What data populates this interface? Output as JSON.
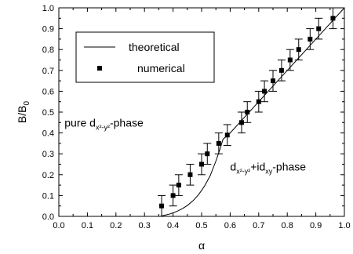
{
  "chart_data": {
    "type": "scatter",
    "xlabel": "α",
    "ylabel_main": "B/B",
    "ylabel_sub": "0",
    "xlim": [
      0.0,
      1.0
    ],
    "ylim": [
      0.0,
      1.0
    ],
    "x_ticks": [
      "0.0",
      "0.1",
      "0.2",
      "0.3",
      "0.4",
      "0.5",
      "0.6",
      "0.7",
      "0.8",
      "0.9",
      "1.0"
    ],
    "y_ticks": [
      "0.0",
      "0.1",
      "0.2",
      "0.3",
      "0.4",
      "0.5",
      "0.6",
      "0.7",
      "0.8",
      "0.9",
      "1.0"
    ],
    "grid": false,
    "legend_position": "top-left",
    "series": [
      {
        "name": "theoretical",
        "style": "line",
        "color": "#000000",
        "x": [
          0.355,
          0.37,
          0.39,
          0.41,
          0.43,
          0.45,
          0.47,
          0.49,
          0.51,
          0.53,
          0.55,
          0.565,
          0.575,
          0.6,
          0.7,
          0.8,
          0.9,
          1.0
        ],
        "y": [
          0.0,
          0.005,
          0.012,
          0.022,
          0.035,
          0.052,
          0.075,
          0.105,
          0.145,
          0.195,
          0.265,
          0.325,
          0.37,
          0.4,
          0.55,
          0.7,
          0.85,
          1.0
        ]
      },
      {
        "name": "numerical",
        "style": "marker",
        "color": "#000000",
        "x": [
          0.36,
          0.4,
          0.42,
          0.46,
          0.5,
          0.52,
          0.56,
          0.59,
          0.64,
          0.66,
          0.7,
          0.72,
          0.75,
          0.78,
          0.81,
          0.84,
          0.88,
          0.91,
          0.96
        ],
        "y": [
          0.05,
          0.1,
          0.15,
          0.2,
          0.25,
          0.3,
          0.35,
          0.39,
          0.45,
          0.5,
          0.55,
          0.6,
          0.65,
          0.7,
          0.75,
          0.8,
          0.85,
          0.9,
          0.95
        ],
        "err": 0.05
      }
    ],
    "annotations": [
      {
        "parts": [
          [
            "pure d",
            ""
          ],
          [
            "x²-y²",
            "sub"
          ],
          [
            "-phase",
            ""
          ]
        ],
        "x": 0.02,
        "y": 0.43
      },
      {
        "parts": [
          [
            "d",
            ""
          ],
          [
            "x²-y²",
            "sub"
          ],
          [
            "+id",
            ""
          ],
          [
            "xy",
            "sub"
          ],
          [
            "-phase",
            ""
          ]
        ],
        "x": 0.6,
        "y": 0.22
      }
    ]
  }
}
